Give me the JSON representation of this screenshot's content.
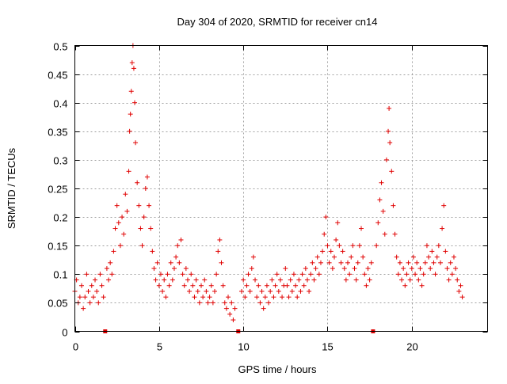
{
  "chart_data": {
    "type": "scatter",
    "title": "Day 304 of 2020, SRMTID for receiver cn14",
    "xlabel": "GPS time / hours",
    "ylabel": "SRMTID / TECUs",
    "xlim": [
      0,
      24.5
    ],
    "ylim": [
      0,
      0.5
    ],
    "x_ticks": [
      0,
      5,
      10,
      15,
      20
    ],
    "x_tick_labels": [
      "0",
      "5",
      "10",
      "15",
      "20"
    ],
    "y_ticks": [
      0,
      0.05,
      0.1,
      0.15,
      0.2,
      0.25,
      0.3,
      0.35,
      0.4,
      0.45,
      0.5
    ],
    "y_tick_labels": [
      "0",
      "0.05",
      "0.1",
      "0.15",
      "0.2",
      "0.25",
      "0.3",
      "0.35",
      "0.4",
      "0.45",
      "0.5"
    ],
    "grid": true,
    "marker": "plus",
    "series_color": "#e00000",
    "gap_markers_x": [
      1.8,
      9.7,
      17.7
    ],
    "series": [
      {
        "name": "SRMTID",
        "points": [
          [
            0.0,
            0.07
          ],
          [
            0.1,
            0.09
          ],
          [
            0.2,
            0.05
          ],
          [
            0.3,
            0.06
          ],
          [
            0.4,
            0.08
          ],
          [
            0.5,
            0.04
          ],
          [
            0.6,
            0.06
          ],
          [
            0.7,
            0.1
          ],
          [
            0.8,
            0.07
          ],
          [
            0.9,
            0.05
          ],
          [
            1.0,
            0.08
          ],
          [
            1.1,
            0.06
          ],
          [
            1.2,
            0.09
          ],
          [
            1.3,
            0.07
          ],
          [
            1.4,
            0.05
          ],
          [
            1.5,
            0.1
          ],
          [
            1.6,
            0.08
          ],
          [
            1.7,
            0.06
          ],
          [
            1.9,
            0.11
          ],
          [
            2.0,
            0.09
          ],
          [
            2.1,
            0.12
          ],
          [
            2.2,
            0.1
          ],
          [
            2.3,
            0.14
          ],
          [
            2.4,
            0.18
          ],
          [
            2.5,
            0.22
          ],
          [
            2.6,
            0.19
          ],
          [
            2.7,
            0.15
          ],
          [
            2.8,
            0.2
          ],
          [
            2.9,
            0.17
          ],
          [
            3.0,
            0.24
          ],
          [
            3.1,
            0.21
          ],
          [
            3.2,
            0.28
          ],
          [
            3.25,
            0.35
          ],
          [
            3.3,
            0.38
          ],
          [
            3.35,
            0.42
          ],
          [
            3.4,
            0.47
          ],
          [
            3.45,
            0.5
          ],
          [
            3.5,
            0.46
          ],
          [
            3.55,
            0.4
          ],
          [
            3.6,
            0.33
          ],
          [
            3.7,
            0.26
          ],
          [
            3.8,
            0.22
          ],
          [
            3.9,
            0.18
          ],
          [
            4.0,
            0.15
          ],
          [
            4.1,
            0.2
          ],
          [
            4.2,
            0.25
          ],
          [
            4.3,
            0.27
          ],
          [
            4.4,
            0.22
          ],
          [
            4.5,
            0.18
          ],
          [
            4.6,
            0.14
          ],
          [
            4.7,
            0.11
          ],
          [
            4.8,
            0.09
          ],
          [
            4.9,
            0.12
          ],
          [
            5.0,
            0.08
          ],
          [
            5.1,
            0.1
          ],
          [
            5.2,
            0.07
          ],
          [
            5.3,
            0.09
          ],
          [
            5.4,
            0.06
          ],
          [
            5.5,
            0.1
          ],
          [
            5.6,
            0.08
          ],
          [
            5.7,
            0.12
          ],
          [
            5.8,
            0.09
          ],
          [
            5.9,
            0.11
          ],
          [
            6.0,
            0.13
          ],
          [
            6.1,
            0.15
          ],
          [
            6.2,
            0.12
          ],
          [
            6.3,
            0.16
          ],
          [
            6.4,
            0.1
          ],
          [
            6.5,
            0.08
          ],
          [
            6.6,
            0.11
          ],
          [
            6.7,
            0.09
          ],
          [
            6.8,
            0.07
          ],
          [
            6.9,
            0.1
          ],
          [
            7.0,
            0.08
          ],
          [
            7.1,
            0.06
          ],
          [
            7.2,
            0.09
          ],
          [
            7.3,
            0.07
          ],
          [
            7.4,
            0.05
          ],
          [
            7.5,
            0.08
          ],
          [
            7.6,
            0.06
          ],
          [
            7.7,
            0.09
          ],
          [
            7.8,
            0.07
          ],
          [
            7.9,
            0.05
          ],
          [
            8.0,
            0.06
          ],
          [
            8.1,
            0.08
          ],
          [
            8.2,
            0.05
          ],
          [
            8.3,
            0.07
          ],
          [
            8.4,
            0.1
          ],
          [
            8.5,
            0.14
          ],
          [
            8.6,
            0.16
          ],
          [
            8.7,
            0.12
          ],
          [
            8.8,
            0.08
          ],
          [
            8.9,
            0.05
          ],
          [
            9.0,
            0.04
          ],
          [
            9.1,
            0.06
          ],
          [
            9.2,
            0.03
          ],
          [
            9.3,
            0.05
          ],
          [
            9.4,
            0.02
          ],
          [
            9.5,
            0.04
          ],
          [
            9.9,
            0.07
          ],
          [
            10.0,
            0.09
          ],
          [
            10.1,
            0.06
          ],
          [
            10.2,
            0.08
          ],
          [
            10.3,
            0.1
          ],
          [
            10.4,
            0.07
          ],
          [
            10.5,
            0.11
          ],
          [
            10.6,
            0.13
          ],
          [
            10.7,
            0.09
          ],
          [
            10.8,
            0.06
          ],
          [
            10.9,
            0.08
          ],
          [
            11.0,
            0.05
          ],
          [
            11.1,
            0.07
          ],
          [
            11.2,
            0.04
          ],
          [
            11.3,
            0.06
          ],
          [
            11.4,
            0.08
          ],
          [
            11.5,
            0.05
          ],
          [
            11.6,
            0.07
          ],
          [
            11.7,
            0.09
          ],
          [
            11.8,
            0.06
          ],
          [
            11.9,
            0.08
          ],
          [
            12.0,
            0.1
          ],
          [
            12.1,
            0.07
          ],
          [
            12.2,
            0.09
          ],
          [
            12.3,
            0.06
          ],
          [
            12.4,
            0.08
          ],
          [
            12.5,
            0.11
          ],
          [
            12.6,
            0.08
          ],
          [
            12.7,
            0.06
          ],
          [
            12.8,
            0.09
          ],
          [
            12.9,
            0.07
          ],
          [
            13.0,
            0.1
          ],
          [
            13.1,
            0.08
          ],
          [
            13.2,
            0.06
          ],
          [
            13.3,
            0.09
          ],
          [
            13.4,
            0.07
          ],
          [
            13.5,
            0.1
          ],
          [
            13.6,
            0.08
          ],
          [
            13.7,
            0.11
          ],
          [
            13.8,
            0.09
          ],
          [
            13.9,
            0.07
          ],
          [
            14.0,
            0.1
          ],
          [
            14.1,
            0.12
          ],
          [
            14.2,
            0.09
          ],
          [
            14.3,
            0.11
          ],
          [
            14.4,
            0.13
          ],
          [
            14.5,
            0.1
          ],
          [
            14.6,
            0.12
          ],
          [
            14.7,
            0.14
          ],
          [
            14.8,
            0.17
          ],
          [
            14.9,
            0.2
          ],
          [
            15.0,
            0.15
          ],
          [
            15.1,
            0.12
          ],
          [
            15.2,
            0.14
          ],
          [
            15.3,
            0.11
          ],
          [
            15.4,
            0.13
          ],
          [
            15.5,
            0.16
          ],
          [
            15.6,
            0.19
          ],
          [
            15.7,
            0.15
          ],
          [
            15.8,
            0.12
          ],
          [
            15.9,
            0.14
          ],
          [
            16.0,
            0.11
          ],
          [
            16.1,
            0.09
          ],
          [
            16.2,
            0.12
          ],
          [
            16.3,
            0.1
          ],
          [
            16.4,
            0.13
          ],
          [
            16.5,
            0.15
          ],
          [
            16.6,
            0.11
          ],
          [
            16.7,
            0.09
          ],
          [
            16.8,
            0.12
          ],
          [
            16.9,
            0.15
          ],
          [
            17.0,
            0.18
          ],
          [
            17.1,
            0.13
          ],
          [
            17.2,
            0.1
          ],
          [
            17.3,
            0.08
          ],
          [
            17.4,
            0.11
          ],
          [
            17.5,
            0.09
          ],
          [
            17.6,
            0.12
          ],
          [
            17.9,
            0.15
          ],
          [
            18.0,
            0.19
          ],
          [
            18.1,
            0.23
          ],
          [
            18.2,
            0.26
          ],
          [
            18.3,
            0.21
          ],
          [
            18.4,
            0.17
          ],
          [
            18.5,
            0.3
          ],
          [
            18.6,
            0.35
          ],
          [
            18.65,
            0.39
          ],
          [
            18.7,
            0.33
          ],
          [
            18.8,
            0.28
          ],
          [
            18.9,
            0.22
          ],
          [
            19.0,
            0.17
          ],
          [
            19.1,
            0.13
          ],
          [
            19.2,
            0.1
          ],
          [
            19.3,
            0.12
          ],
          [
            19.4,
            0.09
          ],
          [
            19.5,
            0.11
          ],
          [
            19.6,
            0.08
          ],
          [
            19.7,
            0.1
          ],
          [
            19.8,
            0.12
          ],
          [
            19.9,
            0.09
          ],
          [
            20.0,
            0.11
          ],
          [
            20.1,
            0.13
          ],
          [
            20.2,
            0.1
          ],
          [
            20.3,
            0.12
          ],
          [
            20.4,
            0.09
          ],
          [
            20.5,
            0.11
          ],
          [
            20.6,
            0.08
          ],
          [
            20.7,
            0.1
          ],
          [
            20.8,
            0.12
          ],
          [
            20.9,
            0.15
          ],
          [
            21.0,
            0.13
          ],
          [
            21.1,
            0.11
          ],
          [
            21.2,
            0.14
          ],
          [
            21.3,
            0.12
          ],
          [
            21.4,
            0.1
          ],
          [
            21.5,
            0.13
          ],
          [
            21.6,
            0.15
          ],
          [
            21.7,
            0.12
          ],
          [
            21.8,
            0.18
          ],
          [
            21.9,
            0.22
          ],
          [
            22.0,
            0.14
          ],
          [
            22.1,
            0.11
          ],
          [
            22.2,
            0.09
          ],
          [
            22.3,
            0.12
          ],
          [
            22.4,
            0.1
          ],
          [
            22.5,
            0.13
          ],
          [
            22.6,
            0.11
          ],
          [
            22.7,
            0.09
          ],
          [
            22.8,
            0.07
          ],
          [
            22.9,
            0.08
          ],
          [
            23.0,
            0.06
          ]
        ]
      }
    ]
  }
}
